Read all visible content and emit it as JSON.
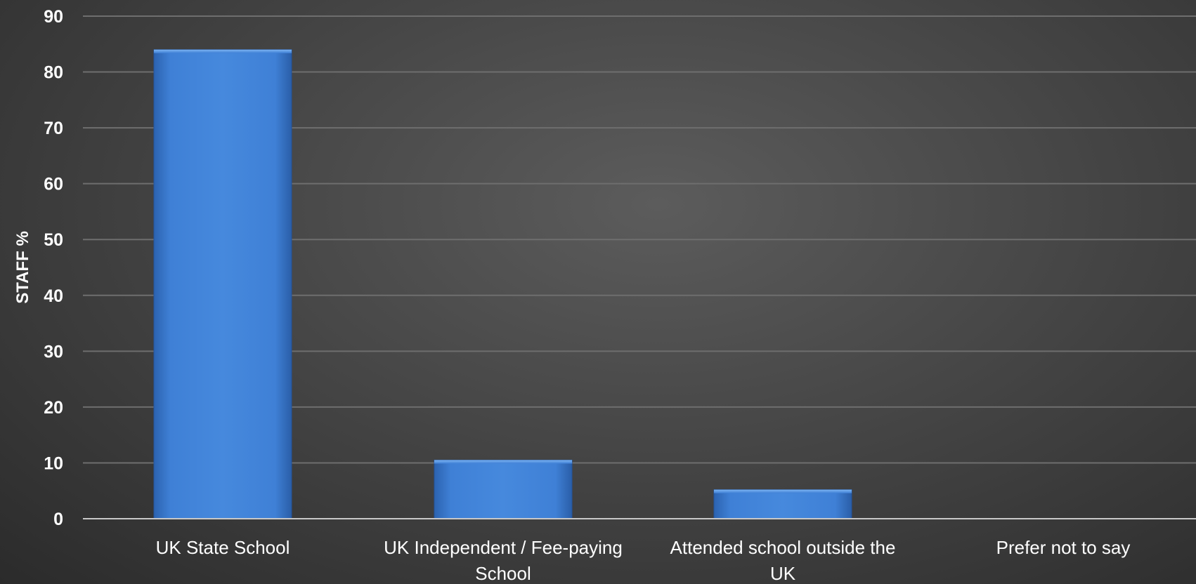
{
  "chart_data": {
    "type": "bar",
    "title": "",
    "xlabel": "",
    "ylabel": "STAFF %",
    "ylim": [
      0,
      90
    ],
    "yticks": [
      0,
      10,
      20,
      30,
      40,
      50,
      60,
      70,
      80,
      90
    ],
    "grid": true,
    "categories": [
      "UK State School",
      "UK Independent / Fee-paying School",
      "Attended school outside the UK",
      "Prefer not to say"
    ],
    "category_lines": [
      [
        "UK State School"
      ],
      [
        "UK Independent / Fee-paying",
        "School"
      ],
      [
        "Attended school outside the",
        "UK"
      ],
      [
        "Prefer not to say"
      ]
    ],
    "values": [
      84,
      10.5,
      5.2,
      0
    ],
    "colors": {
      "bar": "#3f80d6",
      "bar_dark": "#2c63b0",
      "bar_light": "#6aa7ee",
      "grid": "#6e6e6e",
      "axis": "#c8c8c8",
      "text": "#ffffff"
    }
  }
}
